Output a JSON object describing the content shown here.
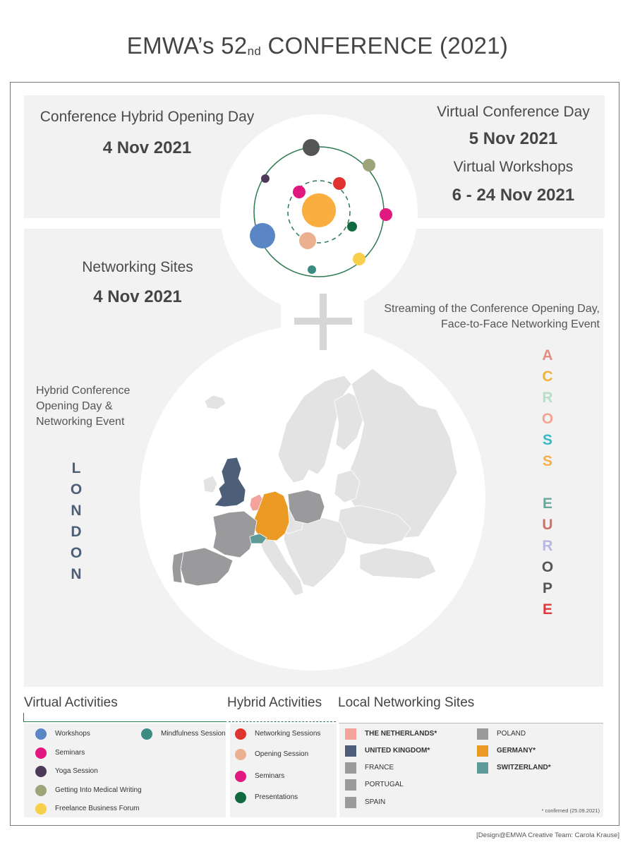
{
  "title": {
    "main": "EMWA’s 52",
    "sup": "nd",
    "rest": " CONFERENCE (2021)"
  },
  "top_left": {
    "heading": "Conference Hybrid Opening Day",
    "date": "4 Nov 2021"
  },
  "top_right": {
    "heading1": "Virtual Conference Day",
    "date1": "5 Nov 2021",
    "heading2": "Virtual Workshops",
    "date2": "6 - 24 Nov 2021"
  },
  "networking": {
    "heading": "Networking Sites",
    "date": "4 Nov 2021",
    "streaming_line1": "Streaming of the Conference Opening Day,",
    "streaming_line2": "Face-to-Face Networking Event"
  },
  "hybrid_note": {
    "line1": "Hybrid Conference",
    "line2": "Opening Day &",
    "line3": "Networking Event"
  },
  "london_letters": [
    "L",
    "O",
    "N",
    "D",
    "O",
    "N"
  ],
  "across_europe": {
    "across": [
      {
        "ch": "A",
        "color": "#e38c7f"
      },
      {
        "ch": "C",
        "color": "#efb33c"
      },
      {
        "ch": "R",
        "color": "#b9ddc8"
      },
      {
        "ch": "O",
        "color": "#f4a493"
      },
      {
        "ch": "S",
        "color": "#37b8c9"
      },
      {
        "ch": "S",
        "color": "#f1b04a"
      }
    ],
    "europe": [
      {
        "ch": "E",
        "color": "#6aa99a"
      },
      {
        "ch": "U",
        "color": "#c9726b"
      },
      {
        "ch": "R",
        "color": "#b7b7e0"
      },
      {
        "ch": "O",
        "color": "#555555"
      },
      {
        "ch": "P",
        "color": "#555555"
      },
      {
        "ch": "E",
        "color": "#e0393d"
      }
    ]
  },
  "orbit_icons": [
    "dark-planet",
    "olive-planet",
    "purple-planet",
    "magenta-planet",
    "red-planet",
    "sun",
    "green-planet",
    "blue-planet",
    "peach-planet",
    "yellow-planet",
    "teal-planet",
    "pink-planet"
  ],
  "sections": {
    "virtual": {
      "title": "Virtual Activities",
      "items": [
        {
          "label": "Workshops",
          "color": "#5b86c6"
        },
        {
          "label": "Seminars",
          "color": "#e0187f"
        },
        {
          "label": "Yoga Session",
          "color": "#4d3a58"
        },
        {
          "label": "Getting Into Medical Writing",
          "color": "#9ea47a"
        },
        {
          "label": "Freelance Business Forum",
          "color": "#f7cf4b"
        },
        {
          "label": "Mindfulness Session",
          "color": "#3b8b80"
        }
      ]
    },
    "hybrid": {
      "title": "Hybrid Activities",
      "items": [
        {
          "label": "Networking Sessions",
          "color": "#e0322f"
        },
        {
          "label": "Opening Session",
          "color": "#eab08f"
        },
        {
          "label": "Seminars",
          "color": "#e0187f"
        },
        {
          "label": "Presentations",
          "color": "#11693f"
        }
      ]
    },
    "local": {
      "title": "Local Networking Sites",
      "items": [
        {
          "label": "THE NETHERLANDS*",
          "color": "#f4a29c",
          "bold": true
        },
        {
          "label": "UNITED KINGDOM*",
          "color": "#4d5f78",
          "bold": true
        },
        {
          "label": "FRANCE",
          "color": "#9a9a9c",
          "bold": false
        },
        {
          "label": "PORTUGAL",
          "color": "#9a9a9c",
          "bold": false
        },
        {
          "label": "SPAIN",
          "color": "#9a9a9c",
          "bold": false
        },
        {
          "label": "POLAND",
          "color": "#9a9a9c",
          "bold": false
        },
        {
          "label": "GERMANY*",
          "color": "#eb9b24",
          "bold": true
        },
        {
          "label": "SWITZERLAND*",
          "color": "#5e9a98",
          "bold": true
        }
      ],
      "footnote": "* confirmed (25.09.2021)"
    }
  },
  "credit": "[Design@EMWA Creative Team: Carola Krause]"
}
